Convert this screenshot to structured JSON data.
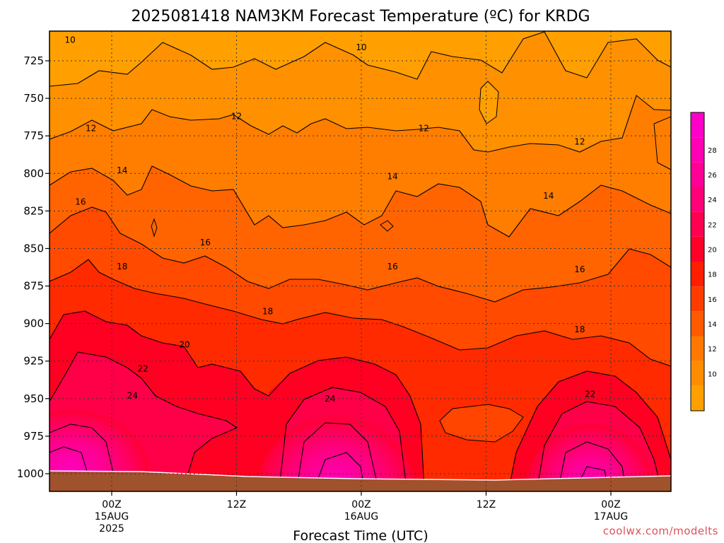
{
  "chart_data": {
    "type": "heatmap",
    "title": "2025081418 NAM3KM Forecast Temperature (ºC) for KRDG",
    "xlabel": "Forecast Time (UTC)",
    "ylabel": "",
    "credit": "coolwx.com/modelts",
    "y_scale": "pressure (inverted)",
    "ylim": [
      1010,
      710
    ],
    "y_ticks": [
      725,
      750,
      775,
      800,
      825,
      850,
      875,
      900,
      925,
      950,
      975,
      1000
    ],
    "x_ticks": [
      {
        "label": "00Z",
        "date": "15AUG",
        "year": "2025"
      },
      {
        "label": "12Z",
        "date": "",
        "year": ""
      },
      {
        "label": "00Z",
        "date": "16AUG",
        "year": ""
      },
      {
        "label": "12Z",
        "date": "",
        "year": ""
      },
      {
        "label": "00Z",
        "date": "17AUG",
        "year": ""
      }
    ],
    "grid": true,
    "colorbar": {
      "levels": [
        10,
        12,
        14,
        16,
        18,
        20,
        22,
        24,
        26,
        28
      ],
      "colors": [
        "#ffa000",
        "#ff8c00",
        "#ff7800",
        "#ff5a00",
        "#ff3c00",
        "#ff1e00",
        "#ff0028",
        "#ff0050",
        "#ff0078",
        "#ff0096",
        "#ff00b4",
        "#ff00c8"
      ],
      "placement": "right"
    },
    "contour_labels": [
      {
        "value": "10",
        "x": "14AUG 20Z",
        "p": 711
      },
      {
        "value": "10",
        "x": "16AUG 00Z",
        "p": 716
      },
      {
        "value": "12",
        "x": "14AUG 22Z",
        "p": 770
      },
      {
        "value": "12",
        "x": "15AUG 12Z",
        "p": 762
      },
      {
        "value": "12",
        "x": "16AUG 06Z",
        "p": 770
      },
      {
        "value": "12",
        "x": "16AUG 21Z",
        "p": 779
      },
      {
        "value": "14",
        "x": "15AUG 01Z",
        "p": 798
      },
      {
        "value": "14",
        "x": "16AUG 03Z",
        "p": 802
      },
      {
        "value": "14",
        "x": "16AUG 18Z",
        "p": 815
      },
      {
        "value": "16",
        "x": "14AUG 21Z",
        "p": 819
      },
      {
        "value": "16",
        "x": "15AUG 09Z",
        "p": 846
      },
      {
        "value": "16",
        "x": "16AUG 03Z",
        "p": 862
      },
      {
        "value": "16",
        "x": "16AUG 21Z",
        "p": 864
      },
      {
        "value": "18",
        "x": "15AUG 01Z",
        "p": 862
      },
      {
        "value": "18",
        "x": "15AUG 15Z",
        "p": 892
      },
      {
        "value": "18",
        "x": "16AUG 21Z",
        "p": 904
      },
      {
        "value": "20",
        "x": "15AUG 07Z",
        "p": 914
      },
      {
        "value": "22",
        "x": "15AUG 03Z",
        "p": 930
      },
      {
        "value": "22",
        "x": "16AUG 22Z",
        "p": 947
      },
      {
        "value": "24",
        "x": "15AUG 02Z",
        "p": 948
      },
      {
        "value": "24",
        "x": "15AUG 21Z",
        "p": 950
      }
    ]
  }
}
